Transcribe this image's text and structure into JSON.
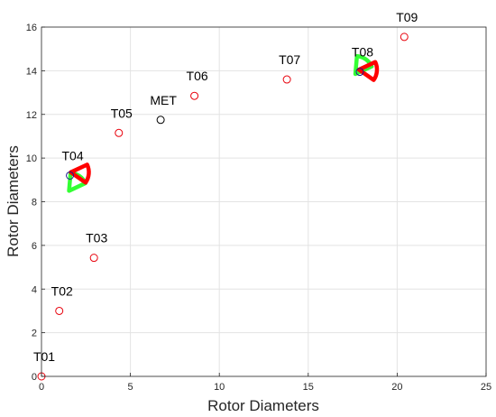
{
  "chart_data": {
    "type": "scatter",
    "xlabel": "Rotor Diameters",
    "ylabel": "Rotor Diameters",
    "xlim": [
      0,
      25
    ],
    "ylim": [
      0,
      16
    ],
    "xticks": [
      "0",
      "5",
      "10",
      "15",
      "20",
      "25"
    ],
    "yticks": [
      "0",
      "2",
      "4",
      "6",
      "8",
      "10",
      "12",
      "14",
      "16"
    ],
    "grid": true,
    "box": true,
    "points": [
      {
        "label": "T01",
        "x": 0.0,
        "y": 0.0,
        "color": "#e8000b"
      },
      {
        "label": "T02",
        "x": 1.0,
        "y": 3.0,
        "color": "#e8000b"
      },
      {
        "label": "T03",
        "x": 2.95,
        "y": 5.43,
        "color": "#e8000b"
      },
      {
        "label": "T04",
        "x": 1.6,
        "y": 9.2,
        "color": "#1a1a8c"
      },
      {
        "label": "T05",
        "x": 4.35,
        "y": 11.15,
        "color": "#e8000b"
      },
      {
        "label": "MET",
        "x": 6.7,
        "y": 11.75,
        "color": "#000000"
      },
      {
        "label": "T06",
        "x": 8.6,
        "y": 12.85,
        "color": "#e8000b"
      },
      {
        "label": "T07",
        "x": 13.8,
        "y": 13.6,
        "color": "#e8000b"
      },
      {
        "label": "T08",
        "x": 17.9,
        "y": 13.95,
        "color": "#1a1a8c"
      },
      {
        "label": "T09",
        "x": 20.4,
        "y": 15.55,
        "color": "#e8000b"
      }
    ],
    "sectors": [
      {
        "x": 1.55,
        "y": 8.5,
        "color": "#33ff33",
        "start_deg": 25,
        "end_deg": 85
      },
      {
        "x": 1.65,
        "y": 9.35,
        "color": "#ff0000",
        "start_deg": -35,
        "end_deg": 25
      },
      {
        "x": 17.65,
        "y": 13.85,
        "color": "#33ff33",
        "start_deg": 25,
        "end_deg": 85
      },
      {
        "x": 17.85,
        "y": 14.05,
        "color": "#ff0000",
        "start_deg": -35,
        "end_deg": 25
      }
    ]
  }
}
